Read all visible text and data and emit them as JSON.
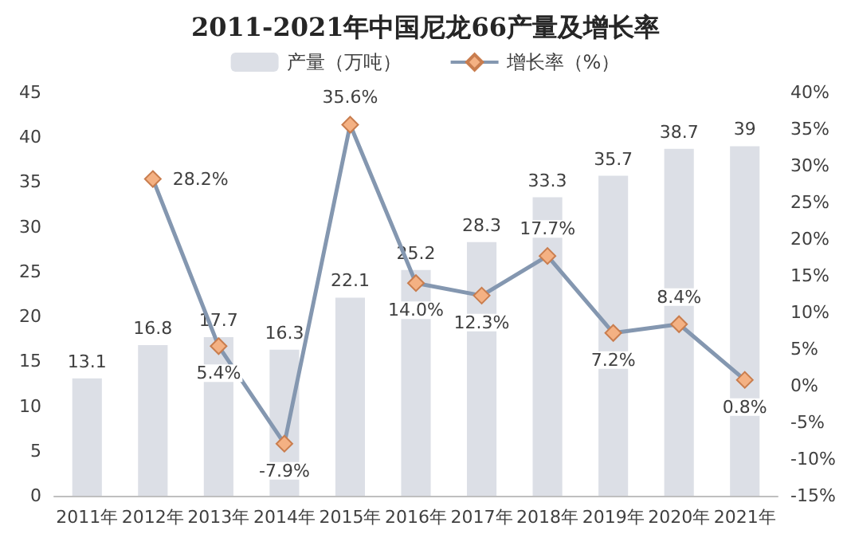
{
  "chart_data": {
    "type": "bar",
    "title": "2011-2021年中国尼龙66产量及增长率",
    "categories": [
      "2011年",
      "2012年",
      "2013年",
      "2014年",
      "2015年",
      "2016年",
      "2017年",
      "2018年",
      "2019年",
      "2020年",
      "2021年"
    ],
    "series": [
      {
        "name": "产量（万吨）",
        "color": "#dcdfe6",
        "values": [
          13.1,
          16.8,
          17.7,
          16.3,
          22.1,
          25.2,
          28.3,
          33.3,
          35.7,
          38.7,
          39
        ],
        "value_labels": [
          "13.1",
          "16.8",
          "17.7",
          "16.3",
          "22.1",
          "25.2",
          "28.3",
          "33.3",
          "35.7",
          "38.7",
          "39"
        ]
      },
      {
        "name": "增长率（%）",
        "type": "line",
        "axis": "y2",
        "color": "#8497b0",
        "marker": "diamond",
        "values": [
          null,
          28.2,
          5.4,
          -7.9,
          35.6,
          14.0,
          12.3,
          17.7,
          7.2,
          8.4,
          0.8
        ],
        "value_labels": [
          null,
          "28.2%",
          "5.4%",
          "-7.9%",
          "35.6%",
          "14.0%",
          "12.3%",
          "17.7%",
          "7.2%",
          "8.4%",
          "0.8%"
        ]
      }
    ],
    "ylim": [
      0,
      45
    ],
    "yticks": [
      0,
      5,
      10,
      15,
      20,
      25,
      30,
      35,
      40,
      45
    ],
    "y2lim": [
      -15,
      40
    ],
    "y2ticks": [
      {
        "value": -15,
        "label": "-15%"
      },
      {
        "value": -10,
        "label": "-10%"
      },
      {
        "value": -5,
        "label": "-5%"
      },
      {
        "value": 0,
        "label": "0%"
      },
      {
        "value": 5,
        "label": "5%"
      },
      {
        "value": 10,
        "label": "10%"
      },
      {
        "value": 15,
        "label": "15%"
      },
      {
        "value": 20,
        "label": "20%"
      },
      {
        "value": 25,
        "label": "25%"
      },
      {
        "value": 30,
        "label": "30%"
      },
      {
        "value": 35,
        "label": "35%"
      },
      {
        "value": 40,
        "label": "40%"
      }
    ],
    "legend": "top"
  }
}
